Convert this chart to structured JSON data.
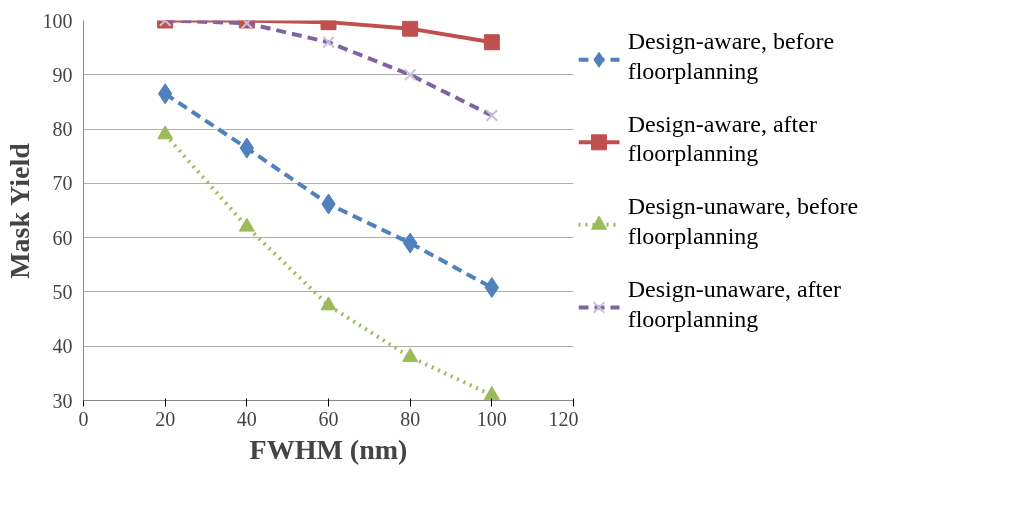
{
  "chart_data": {
    "type": "line",
    "xlabel": "FWHM (nm)",
    "ylabel": "Mask Yield",
    "x": [
      20,
      40,
      60,
      80,
      100
    ],
    "xlim": [
      0,
      120
    ],
    "xticks": [
      0,
      20,
      40,
      60,
      80,
      100,
      120
    ],
    "ylim": [
      30,
      100
    ],
    "yticks": [
      30,
      40,
      50,
      60,
      70,
      80,
      90,
      100
    ],
    "grid": "y",
    "legend": "right",
    "series": [
      {
        "name": "Design-aware, before floorplanning",
        "color": "#4f81bd",
        "marker": "diamond",
        "line_style": "dashed",
        "values": [
          86.5,
          76.5,
          66.2,
          59,
          50.8
        ]
      },
      {
        "name": "Design-aware, after floorplanning",
        "color": "#c0504d",
        "marker": "square",
        "line_style": "solid",
        "values": [
          100,
          100,
          99.7,
          98.5,
          96
        ]
      },
      {
        "name": "Design-unaware, before floorplanning",
        "color": "#9bbb59",
        "marker": "triangle",
        "line_style": "dotted",
        "values": [
          79,
          62,
          47.5,
          38,
          31
        ]
      },
      {
        "name": "Design-unaware, after floorplanning",
        "color": "#8064a2",
        "marker": "cross",
        "line_style": "dashed",
        "values": [
          100,
          99.5,
          96,
          90,
          82.5
        ]
      }
    ]
  }
}
